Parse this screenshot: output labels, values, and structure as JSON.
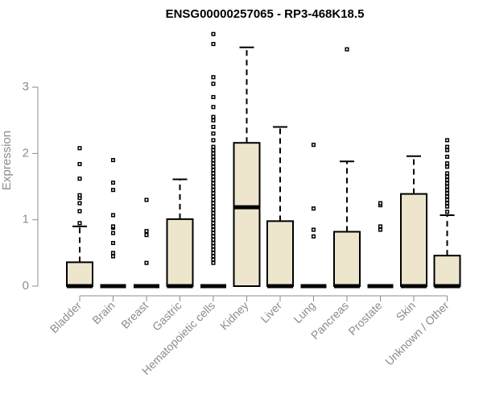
{
  "chart_data": {
    "type": "box",
    "title": "ENSG00000257065 - RP3-468K18.5",
    "xlabel": "",
    "ylabel": "Expression",
    "ylim": [
      0,
      3.9
    ],
    "yticks": [
      0,
      1,
      2,
      3
    ],
    "grid": false,
    "categories": [
      "Bladder",
      "Brain",
      "Breast",
      "Gastric",
      "Hematopoietic cells",
      "Kidney",
      "Liver",
      "Lung",
      "Pancreas",
      "Prostate",
      "Skin",
      "Unknown / Other"
    ],
    "boxes": [
      {
        "category": "Bladder",
        "q1": 0,
        "median": 0,
        "q3": 0.36,
        "whisker_low": 0,
        "whisker_high": 0.9,
        "outliers": [
          0.95,
          1.13,
          1.25,
          1.33,
          1.37,
          1.62,
          1.84,
          2.08
        ]
      },
      {
        "category": "Brain",
        "q1": 0,
        "median": 0,
        "q3": 0,
        "whisker_low": 0,
        "whisker_high": 0,
        "outliers": [
          0.45,
          0.5,
          0.65,
          0.8,
          0.88,
          0.9,
          1.07,
          1.45,
          1.56,
          1.9
        ]
      },
      {
        "category": "Breast",
        "q1": 0,
        "median": 0,
        "q3": 0,
        "whisker_low": 0,
        "whisker_high": 0,
        "outliers": [
          0.35,
          0.77,
          0.83,
          1.3
        ]
      },
      {
        "category": "Gastric",
        "q1": 0,
        "median": 0,
        "q3": 1.01,
        "whisker_low": 0,
        "whisker_high": 1.61,
        "outliers": []
      },
      {
        "category": "Hematopoietic cells",
        "q1": 0,
        "median": 0,
        "q3": 0,
        "whisker_low": 0,
        "whisker_high": 0,
        "outliers": [
          0.35,
          0.4,
          0.45,
          0.5,
          0.55,
          0.6,
          0.65,
          0.7,
          0.75,
          0.8,
          0.85,
          0.9,
          0.95,
          1.0,
          1.05,
          1.1,
          1.15,
          1.2,
          1.25,
          1.3,
          1.35,
          1.4,
          1.45,
          1.5,
          1.55,
          1.6,
          1.65,
          1.7,
          1.75,
          1.8,
          1.85,
          1.9,
          1.95,
          2.0,
          2.05,
          2.1,
          2.2,
          2.3,
          2.4,
          2.5,
          2.55,
          2.7,
          2.85,
          3.05,
          3.15,
          3.65,
          3.8
        ]
      },
      {
        "category": "Kidney",
        "q1": 0,
        "median": 1.19,
        "q3": 2.16,
        "whisker_low": 0,
        "whisker_high": 3.6,
        "outliers": []
      },
      {
        "category": "Liver",
        "q1": 0,
        "median": 0,
        "q3": 0.98,
        "whisker_low": 0,
        "whisker_high": 2.4,
        "outliers": []
      },
      {
        "category": "Lung",
        "q1": 0,
        "median": 0,
        "q3": 0,
        "whisker_low": 0,
        "whisker_high": 0,
        "outliers": [
          0.75,
          0.85,
          1.17,
          2.13
        ]
      },
      {
        "category": "Pancreas",
        "q1": 0,
        "median": 0,
        "q3": 0.82,
        "whisker_low": 0,
        "whisker_high": 1.88,
        "outliers": [
          3.57
        ]
      },
      {
        "category": "Prostate",
        "q1": 0,
        "median": 0,
        "q3": 0,
        "whisker_low": 0,
        "whisker_high": 0,
        "outliers": [
          0.85,
          0.9,
          1.22,
          1.25
        ]
      },
      {
        "category": "Skin",
        "q1": 0,
        "median": 0,
        "q3": 1.39,
        "whisker_low": 0,
        "whisker_high": 1.96,
        "outliers": []
      },
      {
        "category": "Unknown / Other",
        "q1": 0,
        "median": 0,
        "q3": 0.46,
        "whisker_low": 0,
        "whisker_high": 1.07,
        "outliers": [
          1.12,
          1.2,
          1.25,
          1.3,
          1.35,
          1.4,
          1.45,
          1.5,
          1.55,
          1.6,
          1.65,
          1.7,
          1.8,
          1.85,
          1.95,
          2.05,
          2.1,
          2.2
        ]
      }
    ],
    "colors": {
      "box_fill": "#ede6cd",
      "box_stroke": "#000000",
      "axis": "#8c8c8c",
      "title": "#000000"
    }
  }
}
